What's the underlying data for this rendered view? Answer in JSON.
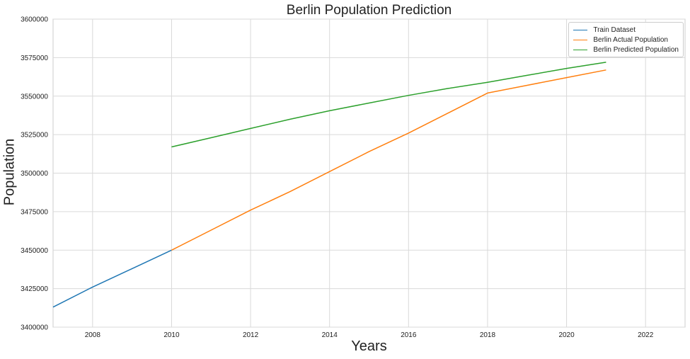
{
  "chart_data": {
    "type": "line",
    "title": "Berlin Population Prediction",
    "xlabel": "Years",
    "ylabel": "Population",
    "xlim": [
      2007,
      2023
    ],
    "ylim": [
      3400000,
      3600000
    ],
    "x_ticks": [
      2008,
      2010,
      2012,
      2014,
      2016,
      2018,
      2020,
      2022
    ],
    "y_ticks": [
      3400000,
      3425000,
      3450000,
      3475000,
      3500000,
      3525000,
      3550000,
      3575000,
      3600000
    ],
    "grid": true,
    "legend_position": "top-right",
    "series": [
      {
        "name": "Train Dataset",
        "color": "#1f77b4",
        "x": [
          2007,
          2008,
          2009,
          2010
        ],
        "y": [
          3413000,
          3426000,
          3438000,
          3450000
        ]
      },
      {
        "name": "Berlin Actual Population",
        "color": "#ff7f0e",
        "x": [
          2010,
          2011,
          2012,
          2013,
          2014,
          2015,
          2016,
          2017,
          2018,
          2019,
          2020,
          2021
        ],
        "y": [
          3450000,
          3463000,
          3476000,
          3488000,
          3501000,
          3514000,
          3526000,
          3539000,
          3552000,
          3557000,
          3562000,
          3567000
        ]
      },
      {
        "name": "Berlin Predicted Population",
        "color": "#2ca02c",
        "x": [
          2010,
          2011,
          2012,
          2013,
          2014,
          2015,
          2016,
          2017,
          2018,
          2019,
          2020,
          2021
        ],
        "y": [
          3517000,
          3523000,
          3529000,
          3535000,
          3540500,
          3545500,
          3550500,
          3555000,
          3559000,
          3563500,
          3568000,
          3572000
        ]
      }
    ]
  }
}
